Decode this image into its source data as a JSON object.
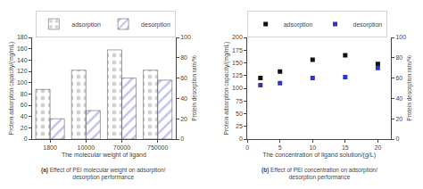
{
  "chart_data": [
    {
      "type": "bar",
      "categories": [
        "1800",
        "10000",
        "70000",
        "750000"
      ],
      "xlabel": "The molecular weight of ligand",
      "ylabel": "Protein adsorption capacity/(mg/mL)",
      "y2label": "Protein desorption rate/%",
      "ylim": [
        0,
        180
      ],
      "yticks": [
        0,
        20,
        40,
        60,
        80,
        100,
        120,
        140,
        160,
        180
      ],
      "y2lim": [
        0,
        100
      ],
      "y2ticks": [
        0,
        20,
        40,
        60,
        80,
        100
      ],
      "grid": false,
      "legend": "upper right",
      "annotations": [
        "(a) Effect of PEI molecular weight on adsorption/\ndesorption performance"
      ],
      "series": [
        {
          "name": "adsorption",
          "color": "#d0d0d0",
          "marker": "dots",
          "values": [
            88,
            122,
            158,
            122
          ]
        },
        {
          "name": "desorption",
          "color": "#c0c0f0",
          "marker": "hatch",
          "axis": "y2",
          "values": [
            20,
            28,
            60,
            58
          ]
        }
      ]
    },
    {
      "type": "scatter",
      "x": [
        2,
        5,
        10,
        15,
        20
      ],
      "xlabel": "The concentration of ligand solution/(g/L)",
      "ylabel": "Protein adsorption capacity/(mg/mL)",
      "y2label": "Protein desorption rate/%",
      "xlim": [
        0,
        22
      ],
      "xticks": [
        0,
        5,
        10,
        15,
        20
      ],
      "ylim": [
        0,
        200
      ],
      "yticks": [
        0,
        25,
        50,
        75,
        100,
        125,
        150,
        175,
        200
      ],
      "y2lim": [
        0,
        100
      ],
      "y2ticks": [
        0,
        20,
        40,
        60,
        80,
        100
      ],
      "grid": false,
      "legend": "upper left",
      "annotations": [
        "(b) Effect of PEI concentration on adsorption/\ndesorption performance"
      ],
      "series": [
        {
          "name": "adsorption",
          "color": "#111111",
          "marker": "square",
          "values": [
            120,
            133,
            156,
            165,
            148
          ]
        },
        {
          "name": "desorption",
          "color": "#3333cc",
          "marker": "square",
          "axis": "y2",
          "values": [
            53,
            55,
            60,
            61,
            70
          ]
        }
      ]
    }
  ]
}
